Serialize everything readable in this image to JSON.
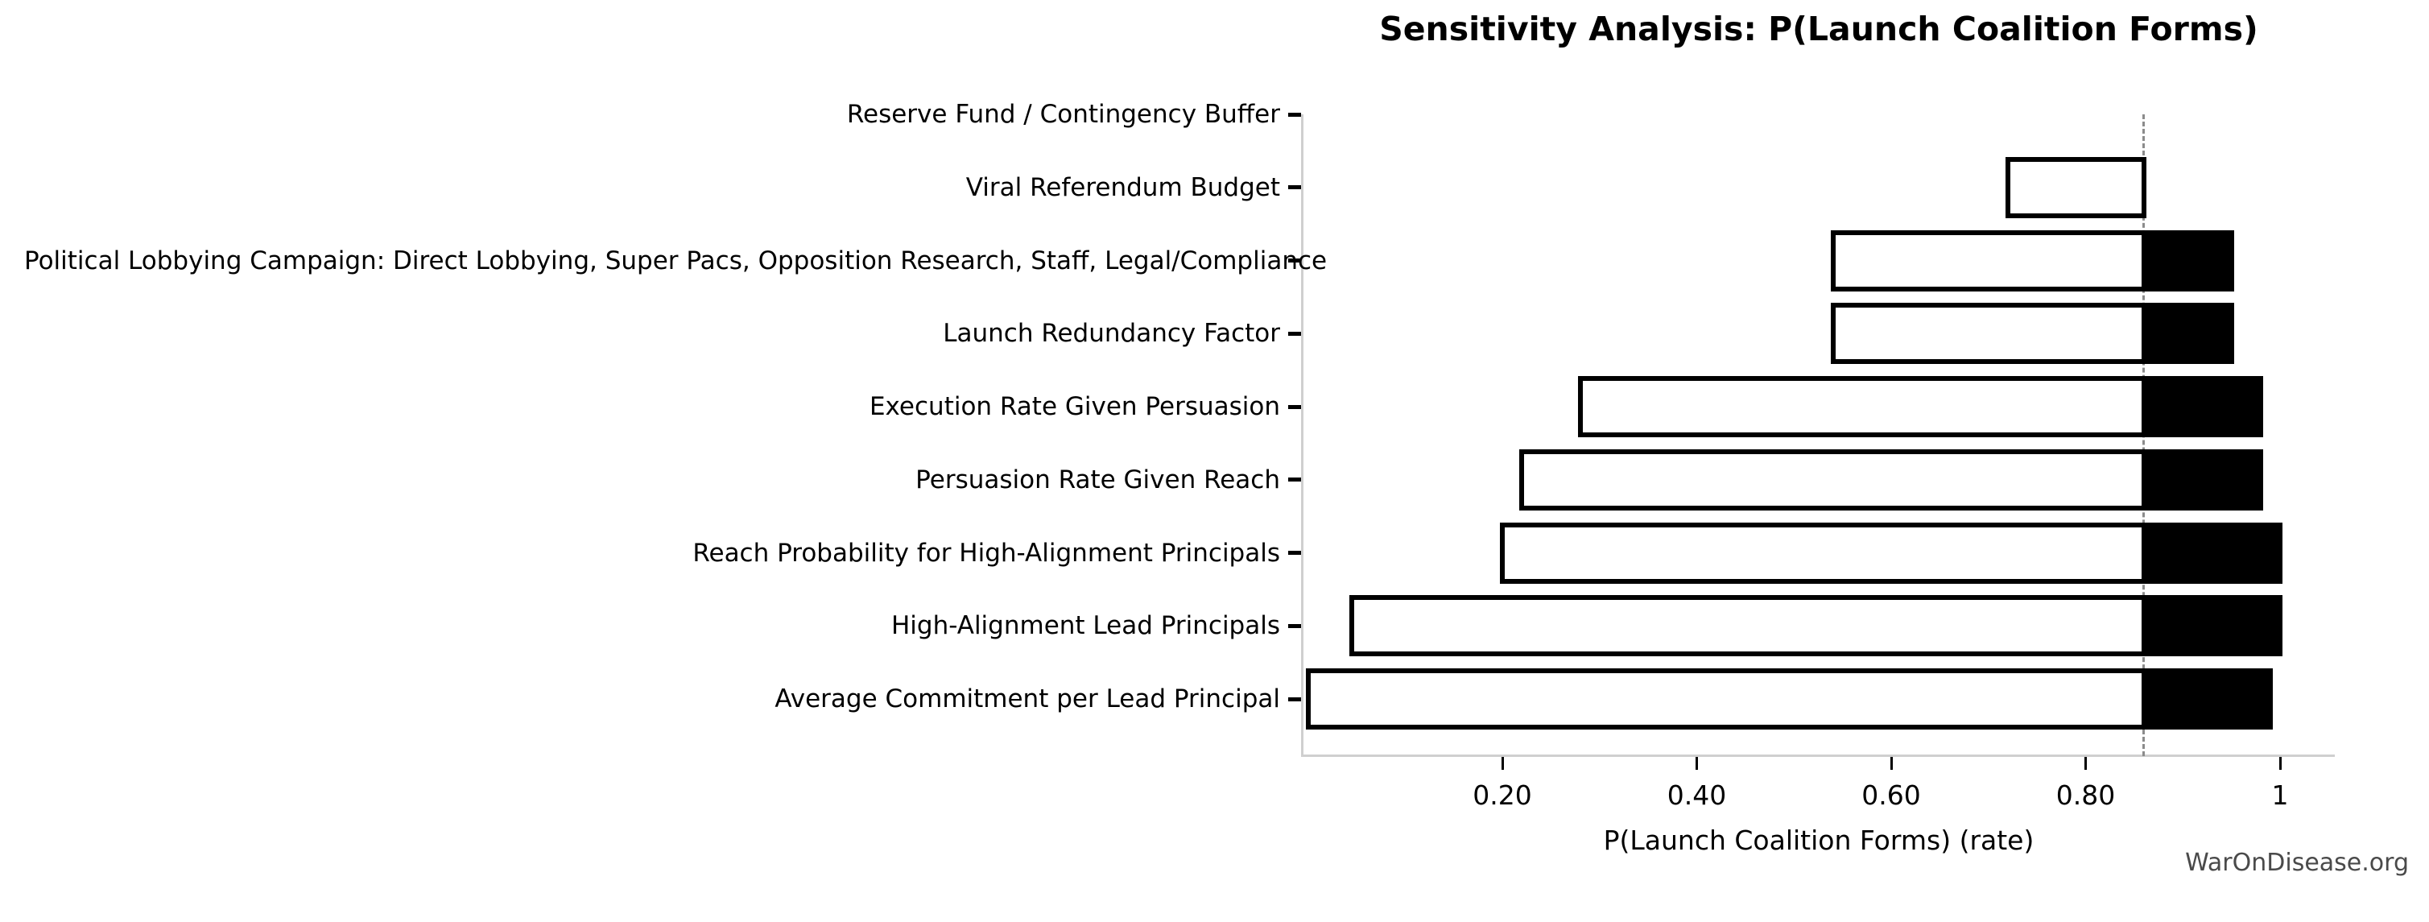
{
  "watermark": "WarOnDisease.org",
  "chart_data": {
    "type": "bar",
    "subtype": "tornado-sensitivity",
    "orientation": "horizontal",
    "title": "Sensitivity Analysis: P(Launch Coalition Forms)",
    "xlabel": "P(Launch Coalition Forms) (rate)",
    "ylabel": "",
    "grid": false,
    "legend": null,
    "baseline": 0.86,
    "xlim": [
      0,
      1.06
    ],
    "x_ticks": [
      {
        "value": 0.2,
        "label": "0.20"
      },
      {
        "value": 0.4,
        "label": "0.40"
      },
      {
        "value": 0.6,
        "label": "0.60"
      },
      {
        "value": 0.8,
        "label": "0.80"
      },
      {
        "value": 1.0,
        "label": "1"
      }
    ],
    "categories": [
      "Reserve Fund / Contingency Buffer",
      "Viral Referendum Budget",
      "Political Lobbying Campaign: Direct Lobbying, Super Pacs, Opposition Research, Staff, Legal/Compliance",
      "Launch Redundancy Factor",
      "Execution Rate Given Persuasion",
      "Persuasion Rate Given Reach",
      "Reach Probability for High-Alignment Principals",
      "High-Alignment Lead Principals",
      "Average Commitment per Lead Principal"
    ],
    "series": [
      {
        "name": "low_value",
        "values": [
          0.86,
          0.72,
          0.54,
          0.54,
          0.28,
          0.22,
          0.2,
          0.045,
          0.0
        ]
      },
      {
        "name": "high_value",
        "values": [
          0.86,
          0.86,
          0.95,
          0.95,
          0.98,
          0.98,
          1.0,
          1.0,
          0.99
        ]
      }
    ],
    "colors": {
      "low_bar_fill": "#ffffff",
      "low_bar_border": "#000000",
      "high_bar_fill": "#000000",
      "baseline_line": "#8c8c8c",
      "spine": "#cfcfcf",
      "tick": "#000000",
      "text": "#000000",
      "watermark": "#4a4a4a"
    }
  }
}
